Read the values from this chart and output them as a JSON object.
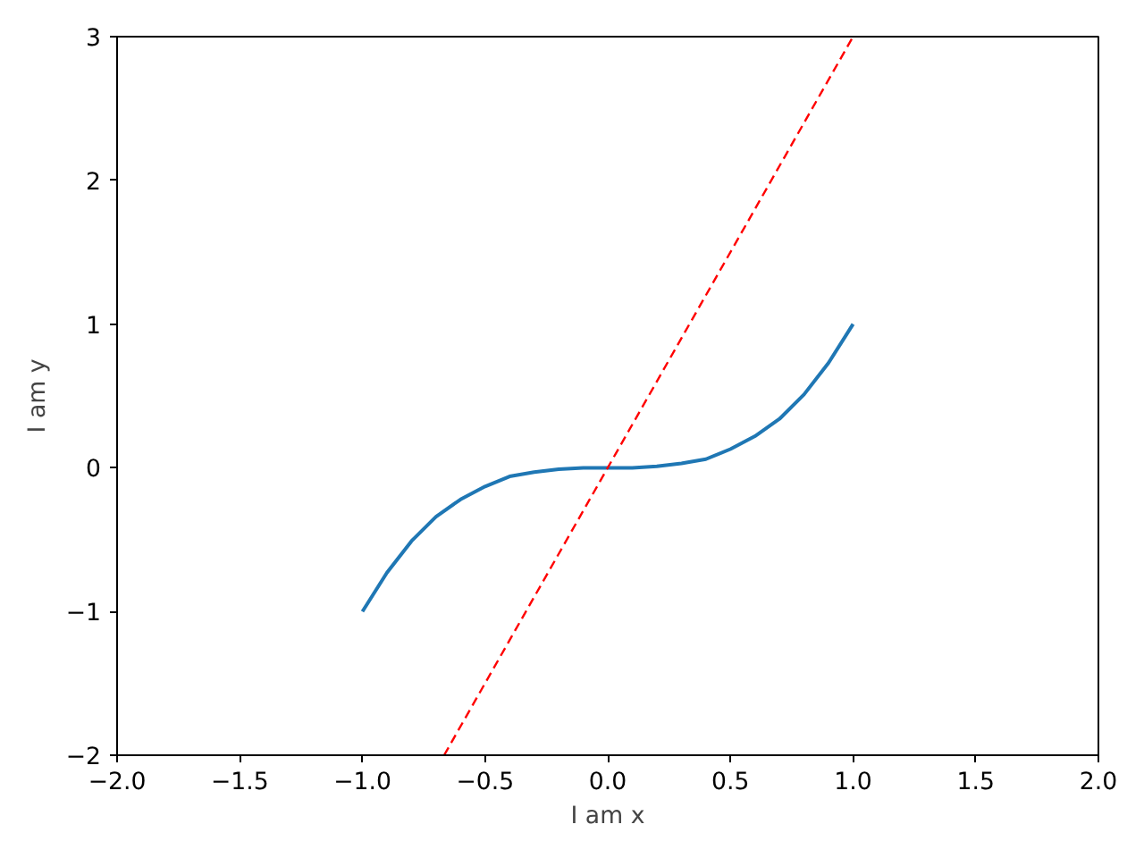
{
  "chart_data": {
    "type": "line",
    "xlabel": "I am x",
    "ylabel": "I am y",
    "xlim": [
      -2,
      2
    ],
    "ylim": [
      -2,
      3
    ],
    "xticks": [
      {
        "value": -2,
        "label": "−2.0"
      },
      {
        "value": -1.5,
        "label": "−1.5"
      },
      {
        "value": -1,
        "label": "−1.0"
      },
      {
        "value": -0.5,
        "label": "−0.5"
      },
      {
        "value": 0,
        "label": "0.0"
      },
      {
        "value": 0.5,
        "label": "0.5"
      },
      {
        "value": 1,
        "label": "1.0"
      },
      {
        "value": 1.5,
        "label": "1.5"
      },
      {
        "value": 2,
        "label": "2.0"
      }
    ],
    "yticks": [
      {
        "value": -2,
        "label": "−2"
      },
      {
        "value": -1,
        "label": "−1"
      },
      0,
      1,
      2,
      3
    ],
    "series": [
      {
        "color": "#1f77b4",
        "line_style": "solid",
        "x": [
          -1,
          -0.9,
          -0.8,
          -0.7,
          -0.6,
          -0.5,
          -0.4,
          -0.3,
          -0.2,
          -0.1,
          0,
          0.1,
          0.2,
          0.3,
          0.4,
          0.5,
          0.6,
          0.7,
          0.8,
          0.9,
          1
        ],
        "values": [
          -1,
          -0.73,
          -0.51,
          -0.34,
          -0.22,
          -0.13,
          -0.06,
          -0.03,
          -0.01,
          0,
          0,
          0,
          0.01,
          0.03,
          0.06,
          0.13,
          0.22,
          0.34,
          0.51,
          0.73,
          1
        ]
      },
      {
        "color": "#ff0000",
        "line_style": "dashed",
        "x": [
          -0.667,
          1
        ],
        "values": [
          -2,
          3
        ]
      }
    ]
  }
}
